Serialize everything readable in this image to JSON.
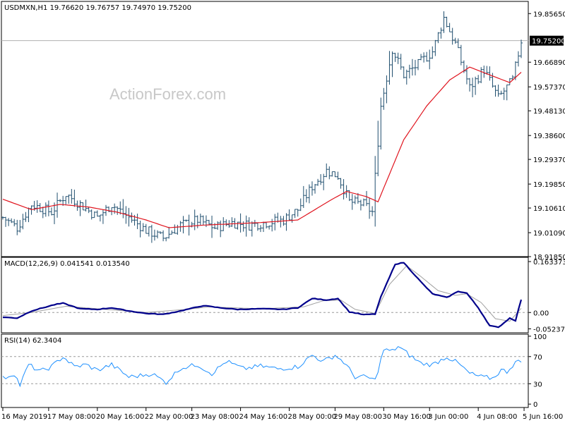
{
  "chart_data": [
    {
      "type": "ohlc",
      "title": "USDMXN,H1  19.76620 19.76757 19.74970 19.75200",
      "watermark": "ActionForex.com",
      "yticks": [
        "19.85650",
        "19.75200",
        "19.66890",
        "19.57370",
        "19.48130",
        "19.38600",
        "19.29370",
        "19.19850",
        "19.10610",
        "19.01090",
        "18.91850"
      ],
      "ylim": [
        18.9185,
        19.9035
      ],
      "current_price": "19.75200",
      "ma_color": "#e0141e",
      "bar_color": "#1f4e6e",
      "series_anchors": [
        {
          "i": 0,
          "c": 19.07
        },
        {
          "i": 5,
          "c": 19.03
        },
        {
          "i": 10,
          "c": 19.12
        },
        {
          "i": 17,
          "c": 19.09
        },
        {
          "i": 22,
          "c": 19.16
        },
        {
          "i": 27,
          "c": 19.12
        },
        {
          "i": 33,
          "c": 19.07
        },
        {
          "i": 38,
          "c": 19.12
        },
        {
          "i": 44,
          "c": 19.07
        },
        {
          "i": 50,
          "c": 19.02
        },
        {
          "i": 56,
          "c": 18.99
        },
        {
          "i": 62,
          "c": 19.04
        },
        {
          "i": 68,
          "c": 19.06
        },
        {
          "i": 74,
          "c": 19.03
        },
        {
          "i": 80,
          "c": 19.05
        },
        {
          "i": 86,
          "c": 19.04
        },
        {
          "i": 92,
          "c": 19.05
        },
        {
          "i": 98,
          "c": 19.06
        },
        {
          "i": 103,
          "c": 19.1
        },
        {
          "i": 108,
          "c": 19.19
        },
        {
          "i": 113,
          "c": 19.25
        },
        {
          "i": 117,
          "c": 19.23
        },
        {
          "i": 121,
          "c": 19.13
        },
        {
          "i": 126,
          "c": 19.12
        },
        {
          "i": 129,
          "c": 19.09
        },
        {
          "i": 132,
          "c": 19.5
        },
        {
          "i": 136,
          "c": 19.72
        },
        {
          "i": 140,
          "c": 19.62
        },
        {
          "i": 145,
          "c": 19.66
        },
        {
          "i": 150,
          "c": 19.71
        },
        {
          "i": 154,
          "c": 19.84
        },
        {
          "i": 158,
          "c": 19.74
        },
        {
          "i": 163,
          "c": 19.57
        },
        {
          "i": 168,
          "c": 19.64
        },
        {
          "i": 173,
          "c": 19.53
        },
        {
          "i": 178,
          "c": 19.6
        },
        {
          "i": 181,
          "c": 19.752
        }
      ],
      "ma_anchors": [
        {
          "i": 0,
          "v": 19.14
        },
        {
          "i": 10,
          "v": 19.1
        },
        {
          "i": 20,
          "v": 19.12
        },
        {
          "i": 30,
          "v": 19.11
        },
        {
          "i": 40,
          "v": 19.09
        },
        {
          "i": 50,
          "v": 19.06
        },
        {
          "i": 58,
          "v": 19.03
        },
        {
          "i": 70,
          "v": 19.04
        },
        {
          "i": 90,
          "v": 19.05
        },
        {
          "i": 103,
          "v": 19.06
        },
        {
          "i": 115,
          "v": 19.14
        },
        {
          "i": 120,
          "v": 19.17
        },
        {
          "i": 127,
          "v": 19.15
        },
        {
          "i": 131,
          "v": 19.13
        },
        {
          "i": 140,
          "v": 19.37
        },
        {
          "i": 148,
          "v": 19.5
        },
        {
          "i": 156,
          "v": 19.6
        },
        {
          "i": 163,
          "v": 19.65
        },
        {
          "i": 170,
          "v": 19.62
        },
        {
          "i": 177,
          "v": 19.59
        },
        {
          "i": 181,
          "v": 19.63
        }
      ]
    },
    {
      "type": "line",
      "title": "MACD(12,26,9) 0.041541 0.013540",
      "yticks": [
        "0.163373",
        "0.00",
        "-0.052377"
      ],
      "ylim": [
        -0.065,
        0.177
      ],
      "zero_level": 0,
      "macd_color": "#00008b",
      "signal_color": "#a0a0a0",
      "macd_anchors": [
        {
          "i": 0,
          "v": -0.015
        },
        {
          "i": 5,
          "v": -0.018
        },
        {
          "i": 10,
          "v": 0.005
        },
        {
          "i": 18,
          "v": 0.025
        },
        {
          "i": 21,
          "v": 0.03
        },
        {
          "i": 27,
          "v": 0.012
        },
        {
          "i": 33,
          "v": 0.01
        },
        {
          "i": 38,
          "v": 0.015
        },
        {
          "i": 44,
          "v": 0.005
        },
        {
          "i": 50,
          "v": -0.003
        },
        {
          "i": 56,
          "v": -0.006
        },
        {
          "i": 62,
          "v": 0.005
        },
        {
          "i": 70,
          "v": 0.022
        },
        {
          "i": 76,
          "v": 0.015
        },
        {
          "i": 82,
          "v": 0.01
        },
        {
          "i": 90,
          "v": 0.012
        },
        {
          "i": 98,
          "v": 0.01
        },
        {
          "i": 103,
          "v": 0.015
        },
        {
          "i": 108,
          "v": 0.045
        },
        {
          "i": 113,
          "v": 0.04
        },
        {
          "i": 117,
          "v": 0.045
        },
        {
          "i": 121,
          "v": 0.002
        },
        {
          "i": 126,
          "v": -0.007
        },
        {
          "i": 130,
          "v": -0.005
        },
        {
          "i": 132,
          "v": 0.05
        },
        {
          "i": 137,
          "v": 0.155
        },
        {
          "i": 140,
          "v": 0.16
        },
        {
          "i": 146,
          "v": 0.098
        },
        {
          "i": 150,
          "v": 0.06
        },
        {
          "i": 155,
          "v": 0.048
        },
        {
          "i": 159,
          "v": 0.068
        },
        {
          "i": 162,
          "v": 0.062
        },
        {
          "i": 166,
          "v": 0.015
        },
        {
          "i": 170,
          "v": -0.042
        },
        {
          "i": 173,
          "v": -0.048
        },
        {
          "i": 177,
          "v": -0.018
        },
        {
          "i": 179,
          "v": -0.026
        },
        {
          "i": 181,
          "v": 0.041541
        }
      ],
      "signal_anchors": [
        {
          "i": 0,
          "v": -0.01
        },
        {
          "i": 10,
          "v": 0.0
        },
        {
          "i": 22,
          "v": 0.02
        },
        {
          "i": 33,
          "v": 0.012
        },
        {
          "i": 50,
          "v": 0.0
        },
        {
          "i": 64,
          "v": 0.01
        },
        {
          "i": 72,
          "v": 0.018
        },
        {
          "i": 90,
          "v": 0.012
        },
        {
          "i": 105,
          "v": 0.018
        },
        {
          "i": 112,
          "v": 0.038
        },
        {
          "i": 118,
          "v": 0.04
        },
        {
          "i": 123,
          "v": 0.01
        },
        {
          "i": 130,
          "v": -0.003
        },
        {
          "i": 135,
          "v": 0.09
        },
        {
          "i": 141,
          "v": 0.15
        },
        {
          "i": 146,
          "v": 0.115
        },
        {
          "i": 152,
          "v": 0.07
        },
        {
          "i": 158,
          "v": 0.055
        },
        {
          "i": 162,
          "v": 0.06
        },
        {
          "i": 167,
          "v": 0.032
        },
        {
          "i": 172,
          "v": -0.02
        },
        {
          "i": 177,
          "v": -0.028
        },
        {
          "i": 181,
          "v": 0.01354
        }
      ]
    },
    {
      "type": "line",
      "title": "RSI(14) 62.3404",
      "yticks": [
        "100",
        "70",
        "30",
        "0"
      ],
      "ylim": [
        -5,
        103
      ],
      "dashed_levels": [
        70,
        30
      ],
      "rsi_color": "#1e90ff",
      "rsi_anchors": [
        {
          "i": 0,
          "v": 38
        },
        {
          "i": 4,
          "v": 45
        },
        {
          "i": 6,
          "v": 28
        },
        {
          "i": 9,
          "v": 58
        },
        {
          "i": 13,
          "v": 48
        },
        {
          "i": 17,
          "v": 55
        },
        {
          "i": 21,
          "v": 70
        },
        {
          "i": 25,
          "v": 55
        },
        {
          "i": 29,
          "v": 58
        },
        {
          "i": 33,
          "v": 50
        },
        {
          "i": 38,
          "v": 58
        },
        {
          "i": 44,
          "v": 40
        },
        {
          "i": 48,
          "v": 42
        },
        {
          "i": 52,
          "v": 45
        },
        {
          "i": 57,
          "v": 32
        },
        {
          "i": 62,
          "v": 53
        },
        {
          "i": 68,
          "v": 58
        },
        {
          "i": 73,
          "v": 45
        },
        {
          "i": 78,
          "v": 63
        },
        {
          "i": 84,
          "v": 52
        },
        {
          "i": 90,
          "v": 56
        },
        {
          "i": 96,
          "v": 52
        },
        {
          "i": 103,
          "v": 55
        },
        {
          "i": 108,
          "v": 72
        },
        {
          "i": 112,
          "v": 63
        },
        {
          "i": 116,
          "v": 72
        },
        {
          "i": 119,
          "v": 62
        },
        {
          "i": 123,
          "v": 40
        },
        {
          "i": 127,
          "v": 40
        },
        {
          "i": 130,
          "v": 35
        },
        {
          "i": 133,
          "v": 80
        },
        {
          "i": 136,
          "v": 78
        },
        {
          "i": 138,
          "v": 85
        },
        {
          "i": 142,
          "v": 72
        },
        {
          "i": 146,
          "v": 60
        },
        {
          "i": 150,
          "v": 58
        },
        {
          "i": 155,
          "v": 70
        },
        {
          "i": 159,
          "v": 60
        },
        {
          "i": 163,
          "v": 45
        },
        {
          "i": 167,
          "v": 40
        },
        {
          "i": 171,
          "v": 38
        },
        {
          "i": 174,
          "v": 50
        },
        {
          "i": 176,
          "v": 48
        },
        {
          "i": 179,
          "v": 62
        },
        {
          "i": 181,
          "v": 62.3404
        }
      ]
    }
  ],
  "x_labels": [
    "16 May 2019",
    "17 May 08:00",
    "20 May 16:00",
    "22 May 00:00",
    "23 May 08:00",
    "24 May 16:00",
    "28 May 00:00",
    "29 May 08:00",
    "30 May 16:00",
    "3 Jun 00:00",
    "4 Jun 08:00",
    "5 Jun 16:00"
  ],
  "x_label_index": [
    0,
    16,
    33,
    50,
    66,
    83,
    100,
    116,
    133,
    149,
    166,
    182
  ],
  "bar_count": 182
}
